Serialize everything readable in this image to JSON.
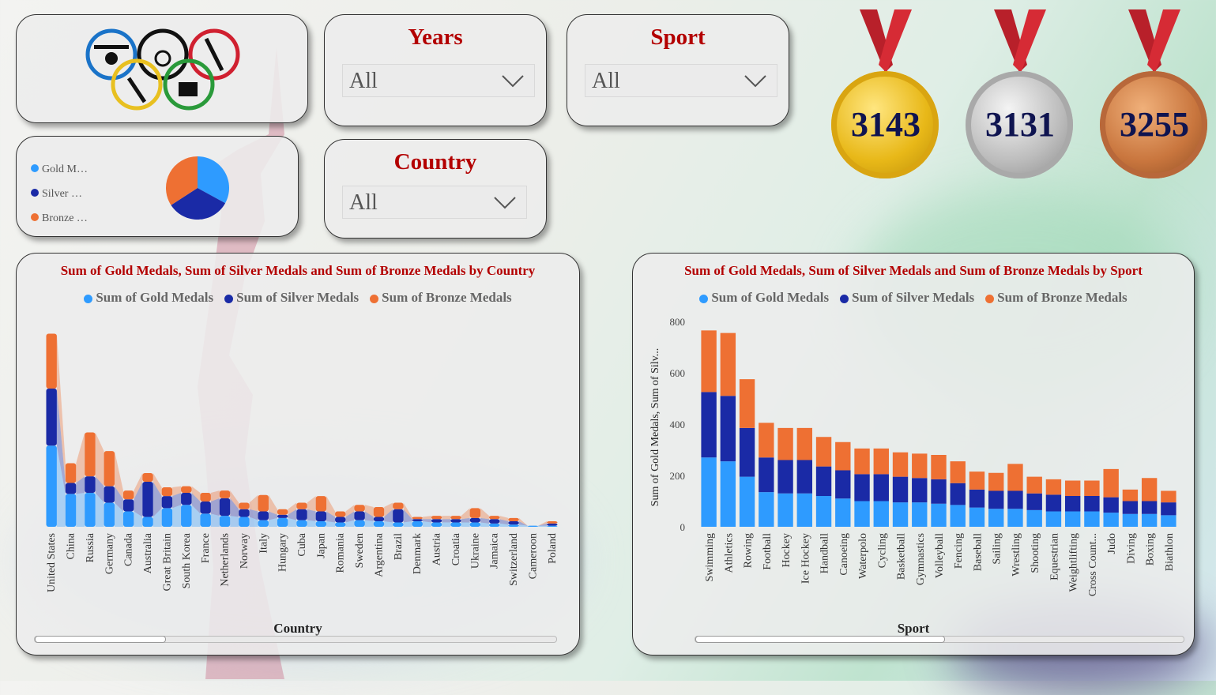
{
  "slicers": {
    "years": {
      "title": "Years",
      "value": "All"
    },
    "sport": {
      "title": "Sport",
      "value": "All"
    },
    "country": {
      "title": "Country",
      "value": "All"
    }
  },
  "medals": {
    "gold": {
      "value": "3143",
      "color": "#e8b818"
    },
    "silver": {
      "value": "3131",
      "color": "#bdbdbd"
    },
    "bronze": {
      "value": "3255",
      "color": "#c9763e"
    }
  },
  "mini_legend": {
    "gold": "Gold M…",
    "silver": "Silver …",
    "bronze": "Bronze …"
  },
  "colors": {
    "gold": "#2e9bff",
    "silver": "#1a2aa6",
    "bronze": "#ee7033"
  },
  "legend": {
    "gold": "Sum of Gold Medals",
    "silver": "Sum of Silver Medals",
    "bronze": "Sum of Bronze Medals"
  },
  "country_chart": {
    "title": "Sum of Gold Medals, Sum of Silver Medals and Sum of Bronze Medals by Country",
    "xlabel": "Country"
  },
  "sport_chart": {
    "title": "Sum of Gold Medals, Sum of Silver Medals and Sum of Bronze Medals by Sport",
    "xlabel": "Sport",
    "ylabel": "Sum of Gold Medals, Sum of Silv..."
  },
  "chart_data": [
    {
      "type": "area",
      "title": "Sum of Gold Medals, Sum of Silver Medals and Sum of Bronze Medals by Country",
      "xlabel": "Country",
      "categories": [
        "United States",
        "China",
        "Russia",
        "Germany",
        "Canada",
        "Australia",
        "Great Britain",
        "South Korea",
        "France",
        "Netherlands",
        "Norway",
        "Italy",
        "Hungary",
        "Cuba",
        "Japan",
        "Romania",
        "Sweden",
        "Argentina",
        "Brazil",
        "Denmark",
        "Austria",
        "Croatia",
        "Ukraine",
        "Jamaica",
        "Switzerland",
        "Cameroon",
        "Poland"
      ],
      "series": [
        {
          "name": "Sum of Gold Medals",
          "values": [
            370,
            150,
            155,
            110,
            70,
            45,
            85,
            100,
            60,
            50,
            45,
            30,
            40,
            30,
            25,
            20,
            30,
            25,
            20,
            25,
            20,
            20,
            20,
            15,
            10,
            5,
            5
          ]
        },
        {
          "name": "Sum of Silver Medals",
          "values": [
            260,
            50,
            75,
            75,
            55,
            160,
            55,
            55,
            55,
            80,
            35,
            40,
            15,
            50,
            45,
            25,
            40,
            20,
            60,
            10,
            15,
            15,
            20,
            20,
            15,
            0,
            10
          ]
        },
        {
          "name": "Sum of Bronze Medals",
          "values": [
            250,
            90,
            200,
            160,
            40,
            40,
            40,
            30,
            40,
            35,
            30,
            75,
            25,
            30,
            70,
            25,
            30,
            45,
            30,
            10,
            15,
            15,
            45,
            15,
            15,
            0,
            10
          ]
        }
      ]
    },
    {
      "type": "bar",
      "title": "Sum of Gold Medals, Sum of Silver Medals and Sum of Bronze Medals by Sport",
      "xlabel": "Sport",
      "ylabel": "Sum of Gold Medals, Sum of Silv...",
      "ylim": [
        0,
        800
      ],
      "yticks": [
        0,
        200,
        400,
        600,
        800
      ],
      "categories": [
        "Swimming",
        "Athletics",
        "Rowing",
        "Football",
        "Hockey",
        "Ice Hockey",
        "Handball",
        "Canoeing",
        "Waterpolo",
        "Cycling",
        "Basketball",
        "Gymnastics",
        "Volleyball",
        "Fencing",
        "Baseball",
        "Sailing",
        "Wrestling",
        "Shooting",
        "Equestrian",
        "Weightlifting",
        "Cross Count...",
        "Judo",
        "Diving",
        "Boxing",
        "Biathlon"
      ],
      "series": [
        {
          "name": "Sum of Gold Medals",
          "values": [
            270,
            255,
            195,
            135,
            130,
            130,
            120,
            110,
            100,
            100,
            95,
            95,
            90,
            85,
            75,
            70,
            70,
            65,
            60,
            60,
            60,
            55,
            50,
            50,
            45
          ]
        },
        {
          "name": "Sum of Silver Medals",
          "values": [
            255,
            255,
            190,
            135,
            130,
            130,
            115,
            110,
            105,
            105,
            100,
            95,
            95,
            85,
            70,
            70,
            70,
            65,
            65,
            60,
            60,
            60,
            50,
            50,
            50
          ]
        },
        {
          "name": "Sum of Bronze Medals",
          "values": [
            240,
            245,
            190,
            135,
            125,
            125,
            115,
            110,
            100,
            100,
            95,
            95,
            95,
            85,
            70,
            70,
            105,
            65,
            60,
            60,
            60,
            110,
            45,
            90,
            45
          ]
        }
      ]
    }
  ]
}
